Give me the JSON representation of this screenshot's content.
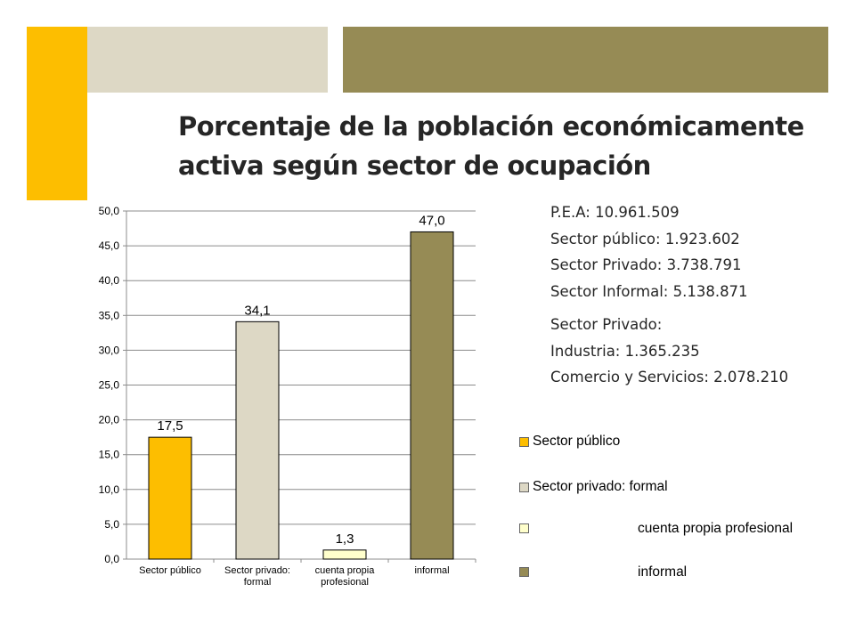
{
  "slide": {
    "title_line1": "Porcentaje de la población económicamente",
    "title_line2": "activa según sector de ocupación",
    "colors": {
      "accent_yellow": "#FDBE00",
      "accent_beige": "#DDD8C5",
      "accent_olive": "#968B55"
    }
  },
  "stats": {
    "pea": "P.E.A: 10.961.509",
    "publico": "Sector público: 1.923.602",
    "privado": "Sector Privado: 3.738.791",
    "informal": "Sector Informal: 5.138.871",
    "privado_heading": "Sector Privado:",
    "industria": "Industria: 1.365.235",
    "comercio": "Comercio y Servicios: 2.078.210"
  },
  "chart_data": {
    "type": "bar",
    "categories": [
      "Sector público",
      "Sector privado: formal",
      "cuenta propia profesional",
      "informal"
    ],
    "category_tick_lines": [
      [
        "Sector público"
      ],
      [
        "Sector privado:",
        "formal"
      ],
      [
        "cuenta propia",
        "profesional"
      ],
      [
        "informal"
      ]
    ],
    "values": [
      17.5,
      34.1,
      1.3,
      47.0
    ],
    "value_labels": [
      "17,5",
      "34,1",
      "1,3",
      "47,0"
    ],
    "colors": [
      "#FDBE00",
      "#DDD8C5",
      "#FFFFCC",
      "#968B55"
    ],
    "ylim": [
      0,
      50
    ],
    "yticks": [
      "0,0",
      "5,0",
      "10,0",
      "15,0",
      "20,0",
      "25,0",
      "30,0",
      "35,0",
      "40,0",
      "45,0",
      "50,0"
    ],
    "grid": true,
    "legend_position": "right",
    "legend": [
      {
        "label": "Sector público",
        "color": "#FDBE00"
      },
      {
        "label": "Sector privado: formal",
        "color": "#DDD8C5"
      },
      {
        "label": "cuenta propia profesional",
        "color": "#FFFFCC"
      },
      {
        "label": "informal",
        "color": "#968B55"
      }
    ]
  }
}
